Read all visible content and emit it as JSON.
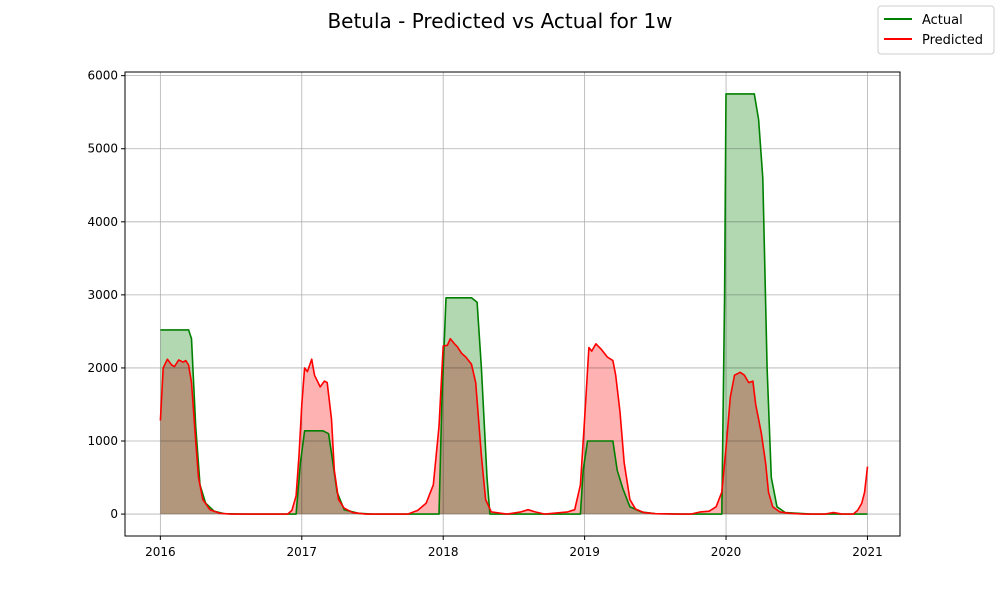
{
  "chart_data": {
    "type": "area",
    "title": "Betula - Predicted vs Actual for 1w",
    "xlabel": "",
    "ylabel": "",
    "x_ticks": [
      "2016",
      "2017",
      "2018",
      "2019",
      "2020",
      "2021"
    ],
    "y_ticks": [
      "0",
      "1000",
      "2000",
      "3000",
      "4000",
      "5000",
      "6000"
    ],
    "xlim": [
      2015.75,
      2021.23
    ],
    "ylim": [
      -300,
      6050
    ],
    "grid": true,
    "legend_position": "top-right",
    "series": [
      {
        "name": "Actual",
        "color": "#008000",
        "fill": "#b2d8b2",
        "points": [
          [
            2016.0,
            2520
          ],
          [
            2016.1,
            2520
          ],
          [
            2016.2,
            2520
          ],
          [
            2016.22,
            2400
          ],
          [
            2016.25,
            1200
          ],
          [
            2016.28,
            400
          ],
          [
            2016.32,
            150
          ],
          [
            2016.38,
            40
          ],
          [
            2016.45,
            5
          ],
          [
            2016.6,
            0
          ],
          [
            2016.9,
            0
          ],
          [
            2016.96,
            0
          ],
          [
            2016.99,
            700
          ],
          [
            2017.02,
            1140
          ],
          [
            2017.15,
            1140
          ],
          [
            2017.19,
            1100
          ],
          [
            2017.22,
            700
          ],
          [
            2017.25,
            300
          ],
          [
            2017.3,
            60
          ],
          [
            2017.4,
            10
          ],
          [
            2017.5,
            0
          ],
          [
            2017.8,
            0
          ],
          [
            2017.97,
            0
          ],
          [
            2017.99,
            1500
          ],
          [
            2018.02,
            2960
          ],
          [
            2018.2,
            2960
          ],
          [
            2018.24,
            2900
          ],
          [
            2018.27,
            2000
          ],
          [
            2018.31,
            500
          ],
          [
            2018.33,
            0
          ],
          [
            2018.6,
            0
          ],
          [
            2018.97,
            0
          ],
          [
            2018.99,
            600
          ],
          [
            2019.02,
            1000
          ],
          [
            2019.2,
            1000
          ],
          [
            2019.23,
            600
          ],
          [
            2019.27,
            350
          ],
          [
            2019.32,
            100
          ],
          [
            2019.4,
            30
          ],
          [
            2019.5,
            5
          ],
          [
            2019.7,
            0
          ],
          [
            2019.97,
            0
          ],
          [
            2019.99,
            3000
          ],
          [
            2020.0,
            5750
          ],
          [
            2020.2,
            5750
          ],
          [
            2020.23,
            5400
          ],
          [
            2020.26,
            4600
          ],
          [
            2020.29,
            2000
          ],
          [
            2020.32,
            500
          ],
          [
            2020.36,
            100
          ],
          [
            2020.42,
            20
          ],
          [
            2020.6,
            0
          ],
          [
            2021.0,
            0
          ]
        ]
      },
      {
        "name": "Predicted",
        "color": "#ff0000",
        "fill": "#ffb2b2",
        "points": [
          [
            2016.0,
            1280
          ],
          [
            2016.02,
            2000
          ],
          [
            2016.05,
            2120
          ],
          [
            2016.08,
            2040
          ],
          [
            2016.1,
            2020
          ],
          [
            2016.13,
            2110
          ],
          [
            2016.16,
            2080
          ],
          [
            2016.18,
            2100
          ],
          [
            2016.2,
            2040
          ],
          [
            2016.22,
            1800
          ],
          [
            2016.25,
            1000
          ],
          [
            2016.27,
            500
          ],
          [
            2016.3,
            200
          ],
          [
            2016.35,
            60
          ],
          [
            2016.42,
            10
          ],
          [
            2016.5,
            0
          ],
          [
            2016.7,
            0
          ],
          [
            2016.9,
            0
          ],
          [
            2016.93,
            50
          ],
          [
            2016.96,
            250
          ],
          [
            2016.98,
            800
          ],
          [
            2017.0,
            1500
          ],
          [
            2017.02,
            2000
          ],
          [
            2017.04,
            1950
          ],
          [
            2017.07,
            2120
          ],
          [
            2017.09,
            1900
          ],
          [
            2017.13,
            1740
          ],
          [
            2017.16,
            1820
          ],
          [
            2017.18,
            1800
          ],
          [
            2017.21,
            1300
          ],
          [
            2017.23,
            600
          ],
          [
            2017.26,
            200
          ],
          [
            2017.3,
            80
          ],
          [
            2017.36,
            20
          ],
          [
            2017.45,
            0
          ],
          [
            2017.75,
            0
          ],
          [
            2017.82,
            50
          ],
          [
            2017.88,
            150
          ],
          [
            2017.93,
            400
          ],
          [
            2017.97,
            1200
          ],
          [
            2018.0,
            2300
          ],
          [
            2018.03,
            2310
          ],
          [
            2018.05,
            2400
          ],
          [
            2018.08,
            2330
          ],
          [
            2018.1,
            2290
          ],
          [
            2018.13,
            2200
          ],
          [
            2018.16,
            2150
          ],
          [
            2018.2,
            2050
          ],
          [
            2018.23,
            1800
          ],
          [
            2018.27,
            800
          ],
          [
            2018.3,
            200
          ],
          [
            2018.34,
            30
          ],
          [
            2018.45,
            0
          ],
          [
            2018.55,
            30
          ],
          [
            2018.6,
            60
          ],
          [
            2018.65,
            30
          ],
          [
            2018.72,
            0
          ],
          [
            2018.88,
            30
          ],
          [
            2018.93,
            60
          ],
          [
            2018.97,
            400
          ],
          [
            2019.0,
            1300
          ],
          [
            2019.03,
            2280
          ],
          [
            2019.05,
            2230
          ],
          [
            2019.08,
            2330
          ],
          [
            2019.12,
            2250
          ],
          [
            2019.16,
            2150
          ],
          [
            2019.2,
            2100
          ],
          [
            2019.22,
            1900
          ],
          [
            2019.25,
            1400
          ],
          [
            2019.28,
            700
          ],
          [
            2019.32,
            200
          ],
          [
            2019.36,
            70
          ],
          [
            2019.42,
            20
          ],
          [
            2019.5,
            5
          ],
          [
            2019.65,
            0
          ],
          [
            2019.75,
            0
          ],
          [
            2019.82,
            30
          ],
          [
            2019.88,
            40
          ],
          [
            2019.93,
            100
          ],
          [
            2019.97,
            300
          ],
          [
            2020.0,
            900
          ],
          [
            2020.03,
            1600
          ],
          [
            2020.06,
            1900
          ],
          [
            2020.1,
            1940
          ],
          [
            2020.13,
            1900
          ],
          [
            2020.16,
            1800
          ],
          [
            2020.19,
            1820
          ],
          [
            2020.21,
            1500
          ],
          [
            2020.23,
            1300
          ],
          [
            2020.25,
            1100
          ],
          [
            2020.28,
            700
          ],
          [
            2020.3,
            300
          ],
          [
            2020.33,
            100
          ],
          [
            2020.38,
            30
          ],
          [
            2020.45,
            10
          ],
          [
            2020.55,
            0
          ],
          [
            2020.7,
            0
          ],
          [
            2020.76,
            20
          ],
          [
            2020.82,
            0
          ],
          [
            2020.9,
            0
          ],
          [
            2020.93,
            50
          ],
          [
            2020.96,
            150
          ],
          [
            2020.98,
            300
          ],
          [
            2021.0,
            650
          ]
        ]
      }
    ]
  }
}
